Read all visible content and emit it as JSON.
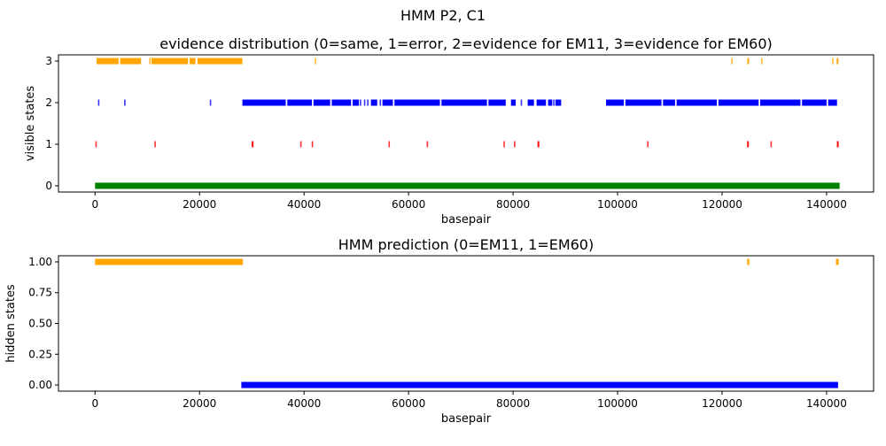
{
  "figure": {
    "suptitle": "HMM P2, C1"
  },
  "colors": {
    "state0": "#008000",
    "state1": "#ff0000",
    "state2": "#0000ff",
    "state3": "#ffa500"
  },
  "chart_data": [
    {
      "type": "scatter",
      "title": "evidence distribution (0=same, 1=error, 2=evidence for EM11, 3=evidence for EM60)",
      "xlabel": "basepair",
      "ylabel": "visible states",
      "xlim": [
        -7000,
        149000
      ],
      "ylim": [
        -0.15,
        3.15
      ],
      "xticks": [
        0,
        20000,
        40000,
        60000,
        80000,
        100000,
        120000,
        140000
      ],
      "yticks": [
        0,
        1,
        2,
        3
      ],
      "grid": false,
      "series": [
        {
          "state": 0,
          "color": "#008000",
          "segments": [
            [
              0,
              142500
            ]
          ],
          "points": []
        },
        {
          "state": 1,
          "color": "#ff0000",
          "segments": [],
          "points": [
            200,
            11500,
            30100,
            30200,
            39400,
            41600,
            56300,
            63600,
            78300,
            80300,
            84800,
            84900,
            105800,
            124900,
            125000,
            129400,
            142100,
            142200
          ]
        },
        {
          "state": 2,
          "color": "#0000ff",
          "segments": [
            [
              28200,
              36500
            ],
            [
              36800,
              41500
            ],
            [
              41800,
              45000
            ],
            [
              45300,
              49000
            ],
            [
              49300,
              50500
            ],
            [
              52800,
              54000
            ],
            [
              55000,
              57000
            ],
            [
              57300,
              66000
            ],
            [
              66300,
              75000
            ],
            [
              75300,
              78600
            ],
            [
              79600,
              80500
            ],
            [
              82800,
              84000
            ],
            [
              84500,
              86300
            ],
            [
              86700,
              87500
            ],
            [
              88100,
              89200
            ],
            [
              97800,
              101200
            ],
            [
              101500,
              108400
            ],
            [
              108700,
              111000
            ],
            [
              111300,
              119000
            ],
            [
              119300,
              127000
            ],
            [
              127300,
              135000
            ],
            [
              135300,
              140000
            ],
            [
              140300,
              142000
            ]
          ],
          "points": [
            700,
            5700,
            22100,
            50800,
            51600,
            52200,
            54600,
            81600,
            87800,
            102000,
            104000,
            110500,
            116500,
            122000,
            126000,
            133000,
            138700
          ]
        },
        {
          "state": 3,
          "color": "#ffa500",
          "segments": [
            [
              300,
              4500
            ],
            [
              4800,
              8800
            ],
            [
              10800,
              17800
            ],
            [
              18100,
              19200
            ],
            [
              19600,
              28200
            ]
          ],
          "points": [
            5200,
            6300,
            10500,
            12800,
            16500,
            21000,
            42200,
            121900,
            124950,
            125050,
            127600,
            141200,
            142050,
            142150
          ]
        }
      ]
    },
    {
      "type": "scatter",
      "title": "HMM prediction (0=EM11, 1=EM60)",
      "xlabel": "basepair",
      "ylabel": "hidden states",
      "xlim": [
        -7000,
        149000
      ],
      "ylim": [
        -0.05,
        1.05
      ],
      "xticks": [
        0,
        20000,
        40000,
        60000,
        80000,
        100000,
        120000,
        140000
      ],
      "yticks": [
        0.0,
        0.25,
        0.5,
        0.75,
        1.0
      ],
      "ytick_labels": [
        "0.00",
        "0.25",
        "0.50",
        "0.75",
        "1.00"
      ],
      "grid": false,
      "series": [
        {
          "state": 1,
          "color": "#ffa500",
          "segments": [
            [
              0,
              28300
            ],
            [
              124800,
              125200
            ],
            [
              141800,
              142300
            ]
          ]
        },
        {
          "state": 0,
          "color": "#0000ff",
          "segments": [
            [
              28000,
              142200
            ]
          ]
        }
      ]
    }
  ]
}
